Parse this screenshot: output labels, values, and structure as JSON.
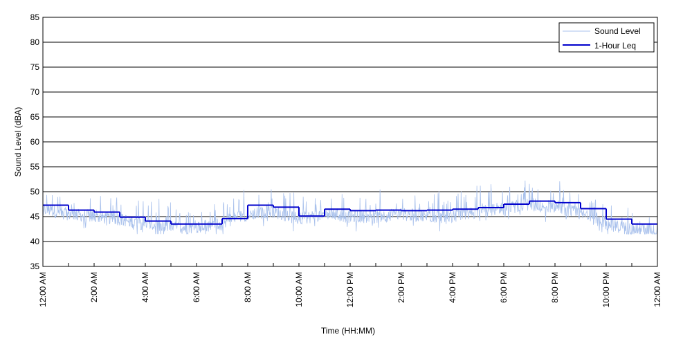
{
  "chart_data": {
    "type": "line",
    "title": "",
    "xlabel": "Time (HH:MM)",
    "ylabel": "Sound Level (dBA)",
    "ylim": [
      35,
      85
    ],
    "yticks": [
      35,
      40,
      45,
      50,
      55,
      60,
      65,
      70,
      75,
      80,
      85
    ],
    "xlim_hours": [
      0,
      24
    ],
    "xtick_labels": [
      "12:00 AM",
      "2:00 AM",
      "4:00 AM",
      "6:00 AM",
      "8:00 AM",
      "10:00 AM",
      "12:00 PM",
      "2:00 PM",
      "4:00 PM",
      "6:00 PM",
      "8:00 PM",
      "10:00 PM",
      "12:00 AM"
    ],
    "grid": "horizontal",
    "legend_position": "top-right",
    "series": [
      {
        "name": "Sound Level",
        "color": "#a9c1ec",
        "style": "thin line",
        "hourly_typical": [
          46.5,
          45.5,
          45.0,
          44.5,
          43.5,
          42.8,
          42.8,
          43.8,
          45.5,
          46.0,
          44.5,
          45.5,
          45.0,
          45.0,
          45.5,
          45.0,
          45.0,
          46.0,
          46.5,
          47.5,
          47.0,
          45.5,
          43.5,
          42.5
        ],
        "min_approx": 41.5,
        "max_approx": 53.5
      },
      {
        "name": "1-Hour Leq",
        "color": "#0000cc",
        "style": "step",
        "x_hours": [
          0,
          1,
          2,
          3,
          4,
          5,
          6,
          7,
          8,
          9,
          10,
          11,
          12,
          13,
          14,
          15,
          16,
          17,
          18,
          19,
          20,
          21,
          22,
          23
        ],
        "values": [
          47.3,
          46.3,
          45.9,
          44.9,
          44.1,
          43.5,
          43.5,
          44.6,
          47.3,
          46.9,
          45.1,
          46.5,
          46.2,
          46.3,
          46.2,
          46.3,
          46.5,
          46.8,
          47.5,
          48.1,
          47.8,
          46.6,
          44.5,
          43.5
        ]
      }
    ]
  }
}
